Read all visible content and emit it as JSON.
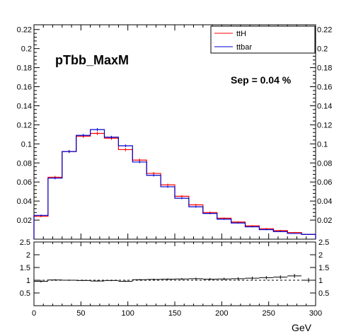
{
  "chart_data": [
    {
      "type": "line",
      "title": "pTbb_MaxM",
      "annotation": "Sep = 0.04 %",
      "xlabel": "GeV",
      "ylabel": "",
      "xlim": [
        0,
        300
      ],
      "ylim": [
        0,
        0.225
      ],
      "x_bins": [
        0,
        15,
        30,
        45,
        60,
        75,
        90,
        105,
        120,
        135,
        150,
        165,
        180,
        195,
        210,
        225,
        240,
        255,
        270,
        285,
        300
      ],
      "x_ticks": [
        "0",
        "50",
        "100",
        "150",
        "200",
        "250",
        "300"
      ],
      "y_ticks": [
        "0.02",
        "0.04",
        "0.06",
        "0.08",
        "0.1",
        "0.12",
        "0.14",
        "0.16",
        "0.18",
        "0.2",
        "0.22"
      ],
      "y_tick_values": [
        0.02,
        0.04,
        0.06,
        0.08,
        0.1,
        0.12,
        0.14,
        0.16,
        0.18,
        0.2,
        0.22
      ],
      "legend_position": "top-right",
      "series": [
        {
          "name": "ttH",
          "color": "#ff0000",
          "values": [
            0.024,
            0.065,
            0.092,
            0.108,
            0.111,
            0.106,
            0.094,
            0.083,
            0.069,
            0.057,
            0.045,
            0.036,
            0.028,
            0.022,
            0.018,
            0.014,
            0.011,
            0.009,
            0.007,
            0.005
          ],
          "errors": [
            0.001,
            0.0015,
            0.0017,
            0.0018,
            0.0019,
            0.0018,
            0.0017,
            0.0016,
            0.0015,
            0.0013,
            0.0012,
            0.0011,
            0.001,
            0.0009,
            0.0008,
            0.0007,
            0.0007,
            0.0006,
            0.0005,
            0.0005
          ]
        },
        {
          "name": "ttbar",
          "color": "#0000cc",
          "values": [
            0.025,
            0.064,
            0.092,
            0.109,
            0.115,
            0.107,
            0.098,
            0.081,
            0.067,
            0.055,
            0.043,
            0.034,
            0.027,
            0.021,
            0.017,
            0.013,
            0.01,
            0.008,
            0.006,
            0.005
          ],
          "errors": [
            0.0008,
            0.0012,
            0.0014,
            0.0015,
            0.0016,
            0.0015,
            0.0014,
            0.0013,
            0.0012,
            0.0011,
            0.001,
            0.0009,
            0.0008,
            0.0007,
            0.0006,
            0.0006,
            0.0005,
            0.0005,
            0.0004,
            0.0004
          ]
        }
      ]
    },
    {
      "type": "scatter",
      "title": "",
      "xlabel": "GeV",
      "ylabel": "",
      "xlim": [
        0,
        300
      ],
      "ylim": [
        0,
        2.5
      ],
      "x_ticks": [
        "0",
        "50",
        "100",
        "150",
        "200",
        "250",
        "300"
      ],
      "y_ticks": [
        "0.5",
        "1",
        "1.5",
        "2",
        "2.5"
      ],
      "y_tick_values": [
        0.5,
        1,
        1.5,
        2,
        2.5
      ],
      "reference_line": 1,
      "series": [
        {
          "name": "",
          "color": "#000000",
          "values": [
            0.96,
            1.01,
            1.0,
            0.99,
            0.97,
            0.99,
            0.96,
            1.02,
            1.03,
            1.04,
            1.05,
            1.06,
            1.04,
            1.05,
            1.06,
            1.08,
            1.1,
            1.12,
            1.17,
            1.0
          ],
          "errors": [
            0.05,
            0.03,
            0.025,
            0.022,
            0.022,
            0.022,
            0.024,
            0.026,
            0.03,
            0.032,
            0.036,
            0.04,
            0.045,
            0.05,
            0.055,
            0.06,
            0.065,
            0.07,
            0.08,
            0.09
          ]
        }
      ]
    }
  ]
}
